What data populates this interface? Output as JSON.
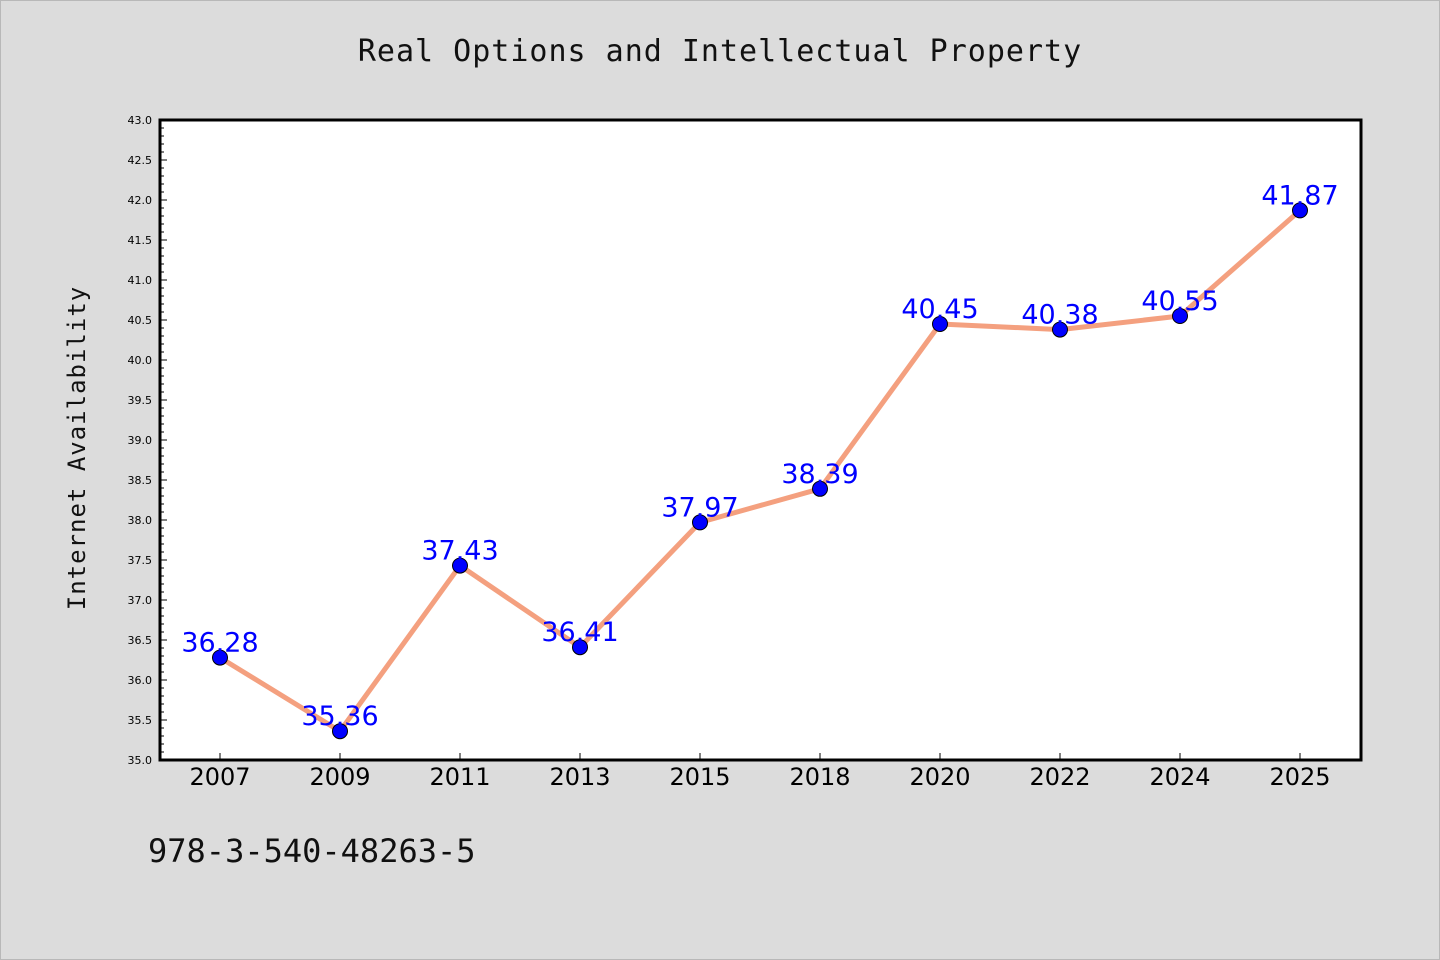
{
  "footnote": "978-3-540-48263-5",
  "chart_data": {
    "type": "line",
    "title": "Real Options and Intellectual Property",
    "xlabel": "",
    "ylabel": "Internet Availability",
    "categories": [
      "2007",
      "2009",
      "2011",
      "2013",
      "2015",
      "2018",
      "2020",
      "2022",
      "2024",
      "2025"
    ],
    "values": [
      36.28,
      35.36,
      37.43,
      36.41,
      37.97,
      38.39,
      40.45,
      40.38,
      40.55,
      41.87
    ],
    "data_labels": [
      "36.28",
      "35.36",
      "37.43",
      "36.41",
      "37.97",
      "38.39",
      "40.45",
      "40.38",
      "40.55",
      "41.87"
    ],
    "ylim": [
      35.0,
      43.0
    ],
    "yticks": [
      "35.0",
      "35.5",
      "36.0",
      "36.5",
      "37.0",
      "37.5",
      "38.0",
      "38.5",
      "39.0",
      "39.5",
      "40.0",
      "40.5",
      "41.0",
      "41.5",
      "42.0",
      "42.5",
      "43.0"
    ],
    "grid": false,
    "legend": "none",
    "line_color": "#f4a07f",
    "marker_color": "#0000ff",
    "label_color": "#0000ff",
    "plot_background": "#ffffff",
    "page_background": "#dcdcdc"
  }
}
